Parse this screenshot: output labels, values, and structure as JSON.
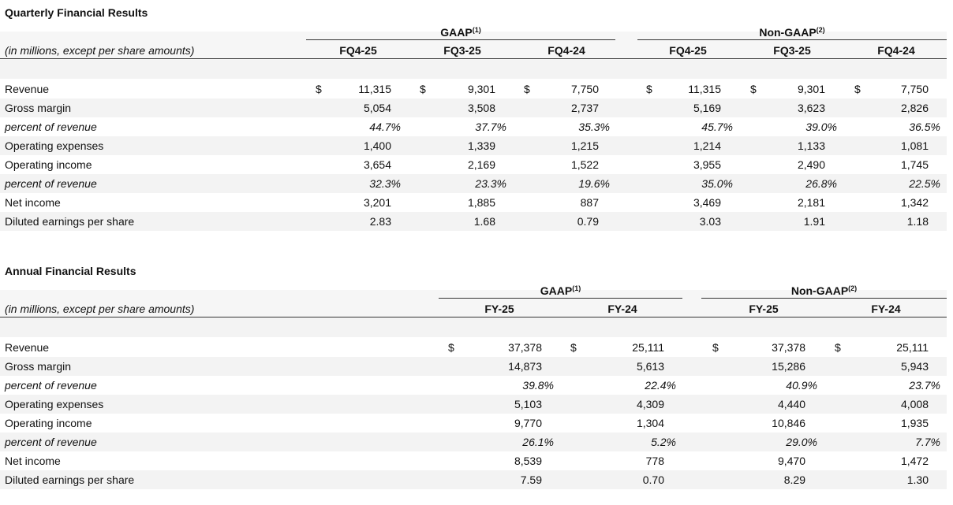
{
  "quarterly": {
    "title": "Quarterly Financial Results",
    "subtitle": "(in millions, except per share amounts)",
    "currency_symbol": "$",
    "groups": [
      {
        "label": "GAAP",
        "note": "(1)",
        "columns": [
          "FQ4-25",
          "FQ3-25",
          "FQ4-24"
        ]
      },
      {
        "label": "Non-GAAP",
        "note": "(2)",
        "columns": [
          "FQ4-25",
          "FQ3-25",
          "FQ4-24"
        ]
      }
    ],
    "rows": [
      {
        "label": "Revenue",
        "currency": true,
        "values": [
          "11,315",
          "9,301",
          "7,750",
          "11,315",
          "9,301",
          "7,750"
        ]
      },
      {
        "label": "Gross margin",
        "values": [
          "5,054",
          "3,508",
          "2,737",
          "5,169",
          "3,623",
          "2,826"
        ]
      },
      {
        "label": "percent of revenue",
        "italic": true,
        "values": [
          "44.7%",
          "37.7%",
          "35.3%",
          "45.7%",
          "39.0%",
          "36.5%"
        ]
      },
      {
        "label": "Operating expenses",
        "values": [
          "1,400",
          "1,339",
          "1,215",
          "1,214",
          "1,133",
          "1,081"
        ]
      },
      {
        "label": "Operating income",
        "values": [
          "3,654",
          "2,169",
          "1,522",
          "3,955",
          "2,490",
          "1,745"
        ]
      },
      {
        "label": "percent of revenue",
        "italic": true,
        "values": [
          "32.3%",
          "23.3%",
          "19.6%",
          "35.0%",
          "26.8%",
          "22.5%"
        ]
      },
      {
        "label": "Net income",
        "values": [
          "3,201",
          "1,885",
          "887",
          "3,469",
          "2,181",
          "1,342"
        ]
      },
      {
        "label": "Diluted earnings per share",
        "values": [
          "2.83",
          "1.68",
          "0.79",
          "3.03",
          "1.91",
          "1.18"
        ]
      }
    ]
  },
  "annual": {
    "title": "Annual Financial Results",
    "subtitle": "(in millions, except per share amounts)",
    "currency_symbol": "$",
    "groups": [
      {
        "label": "GAAP",
        "note": "(1)",
        "columns": [
          "FY-25",
          "FY-24"
        ]
      },
      {
        "label": "Non-GAAP",
        "note": "(2)",
        "columns": [
          "FY-25",
          "FY-24"
        ]
      }
    ],
    "rows": [
      {
        "label": "Revenue",
        "currency": true,
        "values": [
          "37,378",
          "25,111",
          "37,378",
          "25,111"
        ]
      },
      {
        "label": "Gross margin",
        "values": [
          "14,873",
          "5,613",
          "15,286",
          "5,943"
        ]
      },
      {
        "label": "percent of revenue",
        "italic": true,
        "values": [
          "39.8%",
          "22.4%",
          "40.9%",
          "23.7%"
        ]
      },
      {
        "label": "Operating expenses",
        "values": [
          "5,103",
          "4,309",
          "4,440",
          "4,008"
        ]
      },
      {
        "label": "Operating income",
        "values": [
          "9,770",
          "1,304",
          "10,846",
          "1,935"
        ]
      },
      {
        "label": "percent of revenue",
        "italic": true,
        "values": [
          "26.1%",
          "5.2%",
          "29.0%",
          "7.7%"
        ]
      },
      {
        "label": "Net income",
        "values": [
          "8,539",
          "778",
          "9,470",
          "1,472"
        ]
      },
      {
        "label": "Diluted earnings per share",
        "values": [
          "7.59",
          "0.70",
          "8.29",
          "1.30"
        ]
      }
    ]
  }
}
